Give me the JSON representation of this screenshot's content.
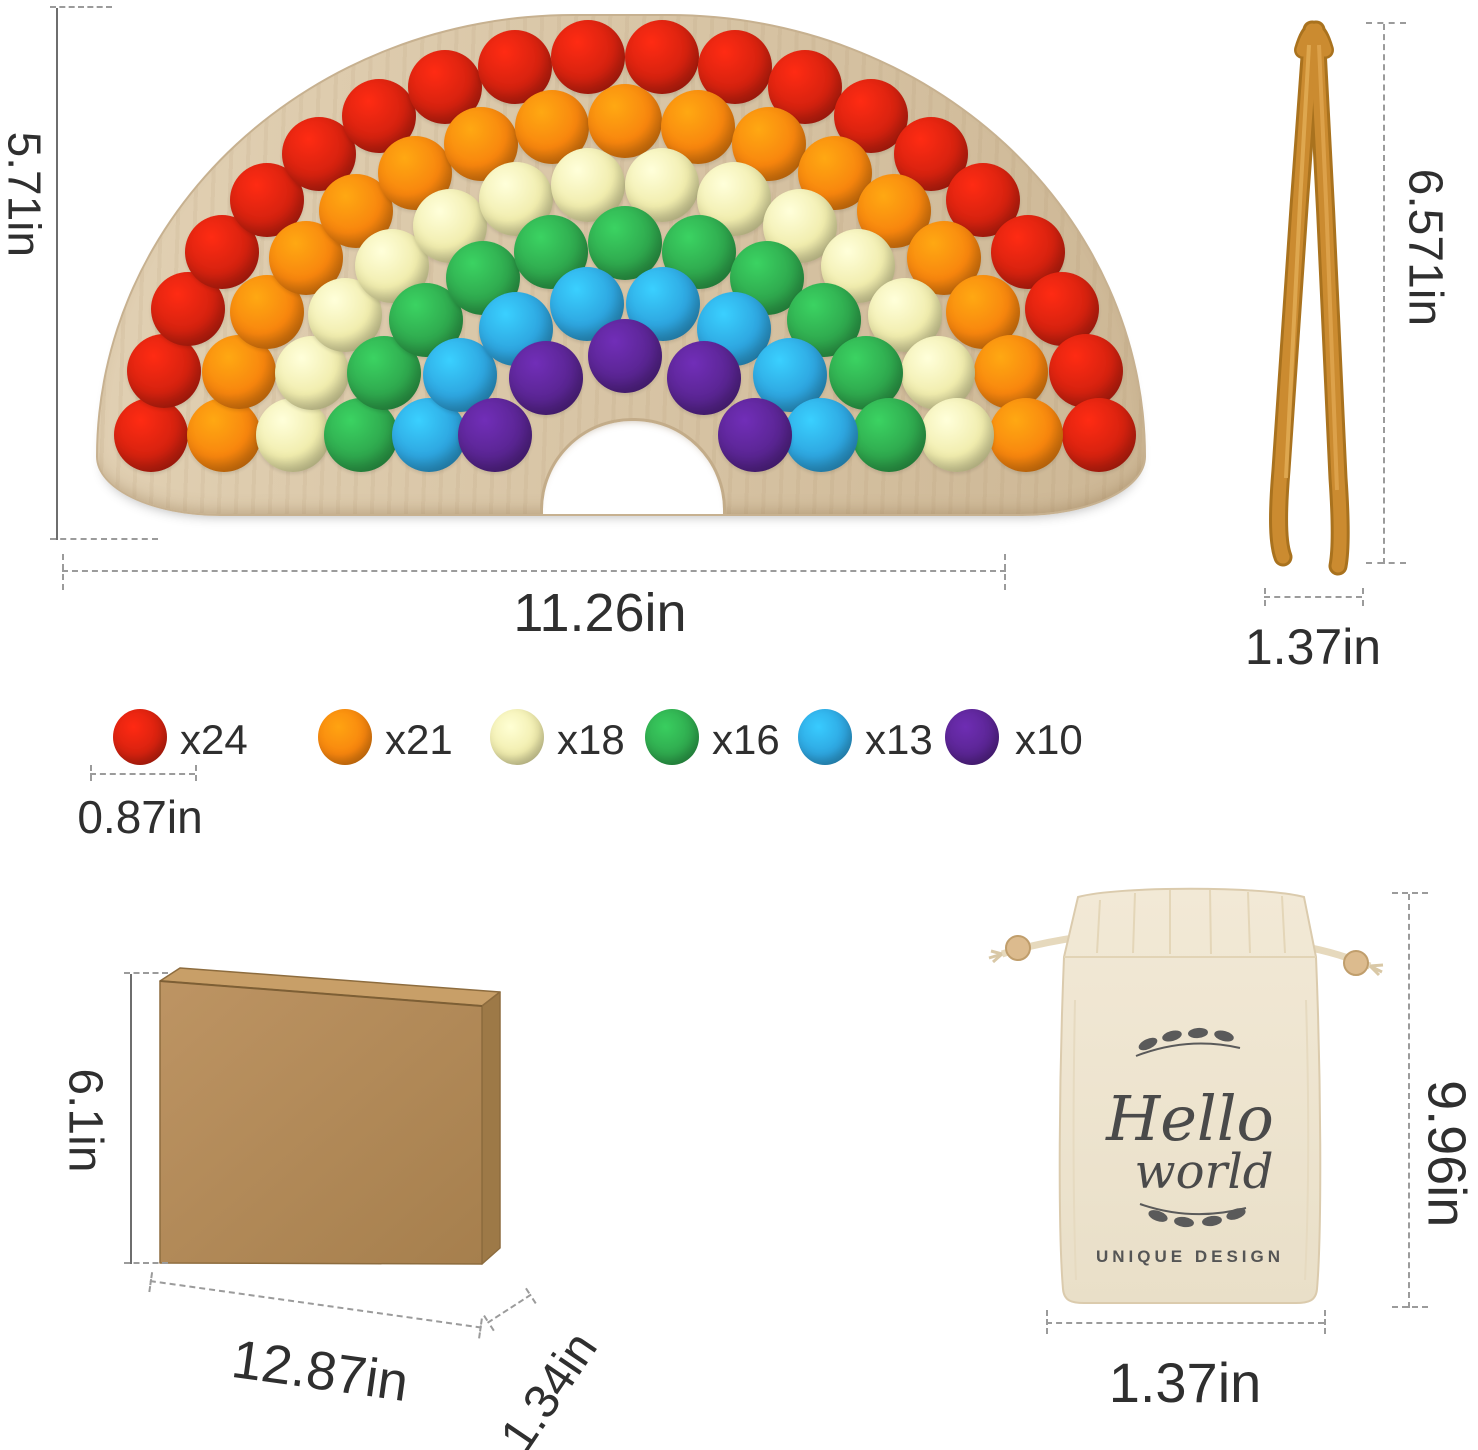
{
  "measurements": {
    "board_height": "5.71in",
    "board_width": "11.26in",
    "tong_height": "6.571in",
    "tong_width": "1.37in",
    "pom_diameter": "0.87in",
    "box_height": "6.1in",
    "box_width": "12.87in",
    "box_depth": "1.34in",
    "bag_height": "9.96in",
    "bag_width": "1.37in"
  },
  "palette": {
    "red": "#d6220f",
    "orange": "#f8860e",
    "yellow": "#f1edae",
    "green": "#2fa94e",
    "blue": "#2ea6e0",
    "purple": "#5a2593"
  },
  "legend": {
    "items": [
      {
        "color": "red",
        "count_label": "x24"
      },
      {
        "color": "orange",
        "count_label": "x21"
      },
      {
        "color": "yellow",
        "count_label": "x18"
      },
      {
        "color": "green",
        "count_label": "x16"
      },
      {
        "color": "blue",
        "count_label": "x13"
      },
      {
        "color": "purple",
        "count_label": "x10"
      }
    ]
  },
  "rainbow": {
    "arcs": [
      {
        "color": "red",
        "pom_count": 20
      },
      {
        "color": "orange",
        "pom_count": 17
      },
      {
        "color": "yellow",
        "pom_count": 14
      },
      {
        "color": "green",
        "pom_count": 11
      },
      {
        "color": "blue",
        "pom_count": 8
      },
      {
        "color": "purple",
        "pom_count": 5
      }
    ]
  },
  "bag_print": {
    "word1": "Hello",
    "word2": "world",
    "subtitle": "UNIQUE DESIGN"
  },
  "materials": {
    "board_wood": "#d9c6a7",
    "tong_wood": "#c9882e",
    "box_kraft": "#b38b57",
    "bag_canvas": "#efe6d2"
  }
}
